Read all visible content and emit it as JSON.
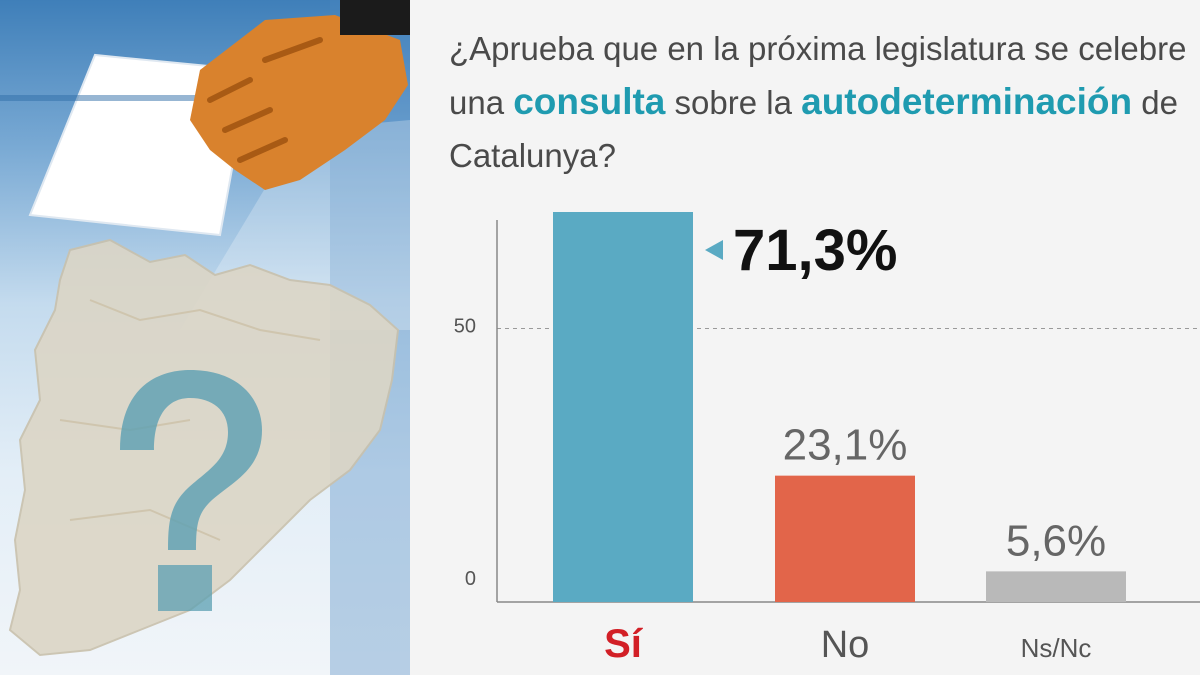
{
  "question": {
    "part1": "¿Aprueba que en la próxima legislatura se celebre una ",
    "highlight1": "consulta",
    "part2": " sobre la ",
    "highlight2": "autodeterminación",
    "part3": " de Catalunya?"
  },
  "illustration": {
    "icon": "question-mark-icon"
  },
  "colors": {
    "si": "#5aaac3",
    "no": "#e2654a",
    "nsnc": "#b9b9b9",
    "highlight": "#1f9bb0",
    "si_label": "#d21f26"
  },
  "chart_data": {
    "type": "bar",
    "categories": [
      "Sí",
      "No",
      "Ns/Nc"
    ],
    "values": [
      71.3,
      23.1,
      5.6
    ],
    "value_labels": [
      "71,3%",
      "23,1%",
      "5,6%"
    ],
    "yticks": [
      "0",
      "50"
    ],
    "ylim": [
      0,
      71.3
    ],
    "grid": "dashed line at 50"
  }
}
